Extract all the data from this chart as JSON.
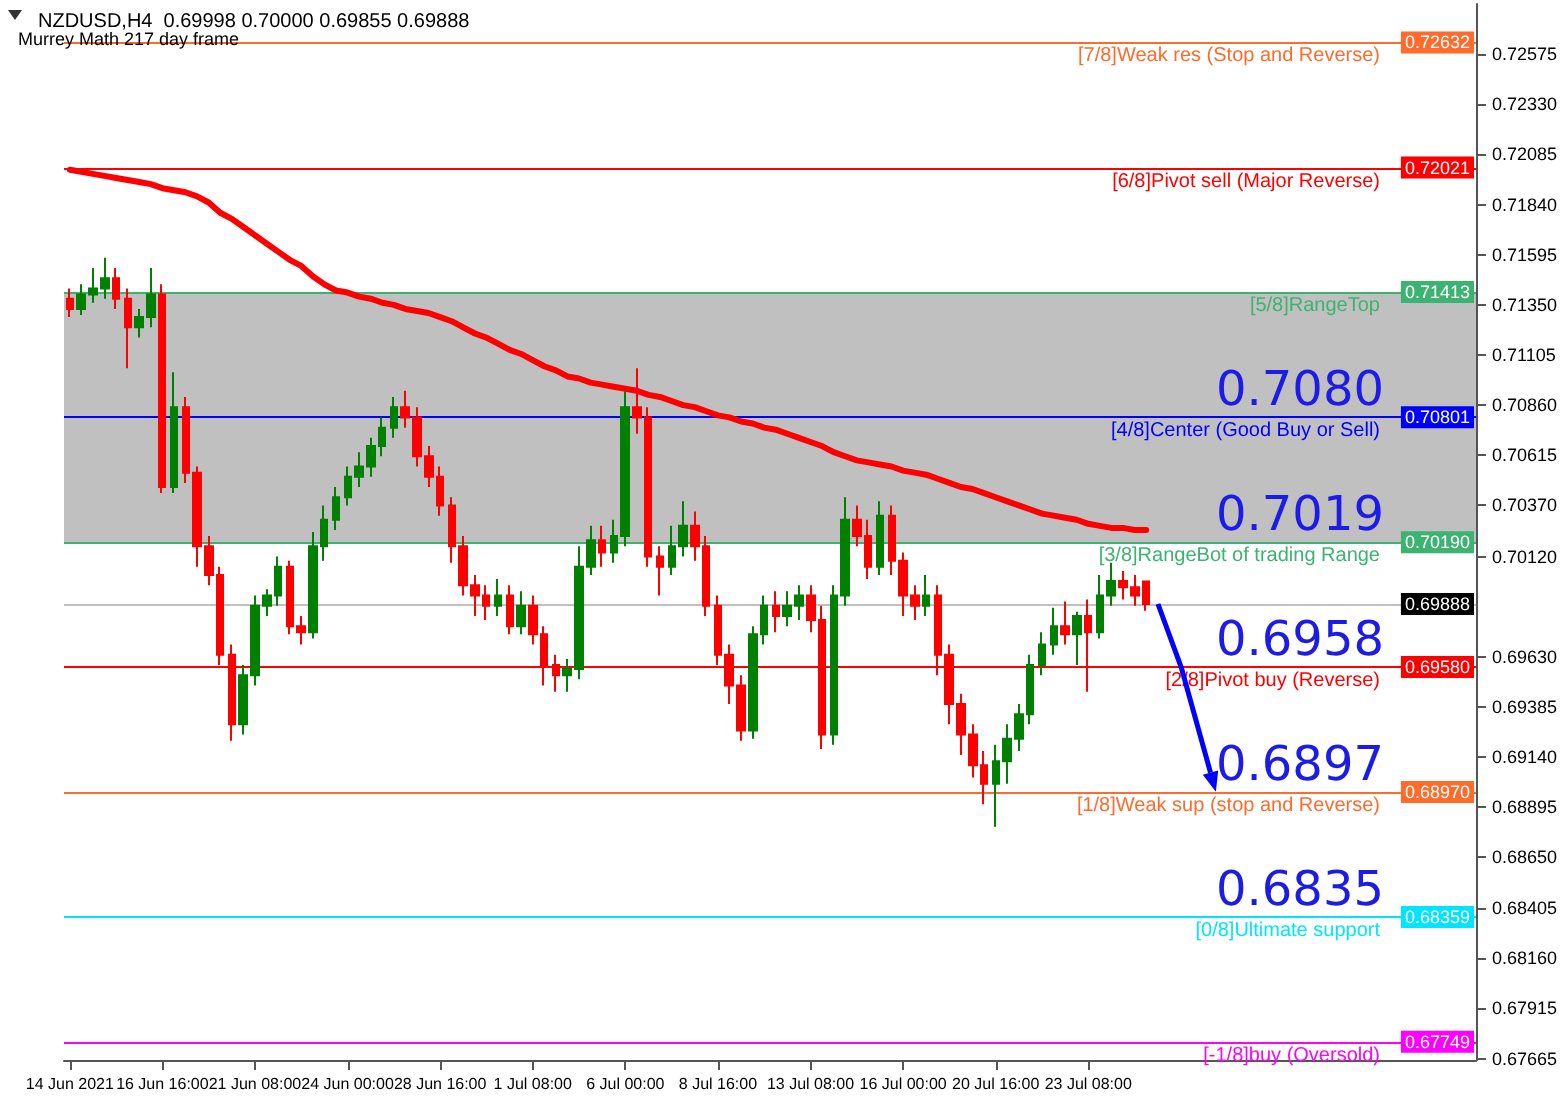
{
  "chart_data": {
    "type": "candlestick",
    "title": "NZDUSD,H4  0.69998 0.70000 0.69855 0.69888",
    "subtitle": "Murrey Math 217 day frame",
    "categories": [
      "14 Jun 2021",
      null,
      null,
      null,
      null,
      null,
      null,
      null,
      "16 Jun 16:00",
      null,
      null,
      null,
      null,
      null,
      null,
      null,
      "21 Jun 08:00",
      null,
      null,
      null,
      null,
      null,
      null,
      null,
      "24 Jun 00:00",
      null,
      null,
      null,
      null,
      null,
      null,
      null,
      "28 Jun 16:00",
      null,
      null,
      null,
      null,
      null,
      null,
      null,
      "1 Jul 08:00",
      null,
      null,
      null,
      null,
      null,
      null,
      null,
      "6 Jul 00:00",
      null,
      null,
      null,
      null,
      null,
      null,
      null,
      "8 Jul 16:00",
      null,
      null,
      null,
      null,
      null,
      null,
      null,
      "13 Jul 08:00",
      null,
      null,
      null,
      null,
      null,
      null,
      null,
      "16 Jul 00:00",
      null,
      null,
      null,
      null,
      null,
      null,
      null,
      "20 Jul 16:00",
      null,
      null,
      null,
      null,
      null,
      null,
      null,
      "23 Jul 08:00",
      null,
      null,
      null,
      null,
      null,
      null,
      null,
      null,
      null,
      null,
      null,
      null,
      null,
      null,
      null,
      null,
      null,
      null,
      null,
      null,
      null,
      null,
      null,
      null,
      null,
      null,
      null,
      null,
      null,
      null,
      null,
      null,
      null
    ],
    "ohlc": [
      [
        0.7138,
        0.7143,
        0.7129,
        0.7133
      ],
      [
        0.7133,
        0.7145,
        0.713,
        0.714
      ],
      [
        0.714,
        0.7153,
        0.7136,
        0.7143
      ],
      [
        0.7143,
        0.7158,
        0.7138,
        0.7148
      ],
      [
        0.7148,
        0.7153,
        0.7133,
        0.7138
      ],
      [
        0.7138,
        0.7143,
        0.7104,
        0.7124
      ],
      [
        0.7124,
        0.7133,
        0.7119,
        0.7129
      ],
      [
        0.7129,
        0.7153,
        0.7124,
        0.714
      ],
      [
        0.714,
        0.7145,
        0.7043,
        0.7046
      ],
      [
        0.7046,
        0.7102,
        0.7043,
        0.7085
      ],
      [
        0.7085,
        0.709,
        0.7048,
        0.7053
      ],
      [
        0.7053,
        0.7056,
        0.7007,
        0.7017
      ],
      [
        0.7017,
        0.7022,
        0.6998,
        0.7003
      ],
      [
        0.7003,
        0.7007,
        0.6959,
        0.6964
      ],
      [
        0.6964,
        0.6969,
        0.6922,
        0.693
      ],
      [
        0.693,
        0.6959,
        0.6925,
        0.6954
      ],
      [
        0.6954,
        0.6993,
        0.6949,
        0.6988
      ],
      [
        0.6988,
        0.6996,
        0.6983,
        0.6993
      ],
      [
        0.6993,
        0.7012,
        0.6988,
        0.7007
      ],
      [
        0.7007,
        0.701,
        0.6974,
        0.6978
      ],
      [
        0.6978,
        0.6983,
        0.6969,
        0.6975
      ],
      [
        0.6975,
        0.7024,
        0.6972,
        0.7017
      ],
      [
        0.7017,
        0.7037,
        0.701,
        0.703
      ],
      [
        0.703,
        0.7046,
        0.7025,
        0.7041
      ],
      [
        0.7041,
        0.7056,
        0.7037,
        0.7051
      ],
      [
        0.7051,
        0.7063,
        0.7046,
        0.7056
      ],
      [
        0.7056,
        0.707,
        0.7051,
        0.7066
      ],
      [
        0.7066,
        0.708,
        0.7061,
        0.7075
      ],
      [
        0.7075,
        0.709,
        0.707,
        0.7085
      ],
      [
        0.7085,
        0.7093,
        0.7075,
        0.708
      ],
      [
        0.708,
        0.7085,
        0.7056,
        0.7061
      ],
      [
        0.7061,
        0.7066,
        0.7046,
        0.7051
      ],
      [
        0.7051,
        0.7056,
        0.7032,
        0.7037
      ],
      [
        0.7037,
        0.7041,
        0.7009,
        0.7017
      ],
      [
        0.7017,
        0.7022,
        0.6993,
        0.6998
      ],
      [
        0.6998,
        0.7003,
        0.6983,
        0.6993
      ],
      [
        0.6993,
        0.6998,
        0.6981,
        0.6988
      ],
      [
        0.6988,
        0.7001,
        0.6983,
        0.6993
      ],
      [
        0.6993,
        0.6998,
        0.6974,
        0.6978
      ],
      [
        0.6978,
        0.6995,
        0.6974,
        0.6988
      ],
      [
        0.6988,
        0.6993,
        0.6969,
        0.6974
      ],
      [
        0.6974,
        0.6978,
        0.6949,
        0.6959
      ],
      [
        0.6959,
        0.6964,
        0.6946,
        0.6954
      ],
      [
        0.6954,
        0.6962,
        0.6946,
        0.6957
      ],
      [
        0.6957,
        0.7017,
        0.6952,
        0.7007
      ],
      [
        0.7007,
        0.7027,
        0.7003,
        0.702
      ],
      [
        0.702,
        0.7027,
        0.7007,
        0.7014
      ],
      [
        0.7014,
        0.703,
        0.7009,
        0.7022
      ],
      [
        0.7022,
        0.7095,
        0.7017,
        0.7085
      ],
      [
        0.7085,
        0.7104,
        0.7072,
        0.708
      ],
      [
        0.708,
        0.7085,
        0.7007,
        0.7012
      ],
      [
        0.7012,
        0.7017,
        0.6993,
        0.7007
      ],
      [
        0.7007,
        0.7027,
        0.7003,
        0.7017
      ],
      [
        0.7017,
        0.7039,
        0.7012,
        0.7027
      ],
      [
        0.7027,
        0.7034,
        0.701,
        0.7017
      ],
      [
        0.7017,
        0.7022,
        0.6983,
        0.6988
      ],
      [
        0.6988,
        0.6993,
        0.6959,
        0.6964
      ],
      [
        0.6964,
        0.6969,
        0.694,
        0.6949
      ],
      [
        0.6949,
        0.6954,
        0.6922,
        0.6927
      ],
      [
        0.6927,
        0.6978,
        0.6923,
        0.6974
      ],
      [
        0.6974,
        0.6993,
        0.6969,
        0.6988
      ],
      [
        0.6988,
        0.6995,
        0.6975,
        0.6983
      ],
      [
        0.6983,
        0.6995,
        0.6978,
        0.6988
      ],
      [
        0.6988,
        0.6998,
        0.6981,
        0.6993
      ],
      [
        0.6993,
        0.6998,
        0.6975,
        0.6981
      ],
      [
        0.6981,
        0.6988,
        0.6918,
        0.6925
      ],
      [
        0.6925,
        0.6998,
        0.692,
        0.6993
      ],
      [
        0.6993,
        0.7041,
        0.6988,
        0.703
      ],
      [
        0.703,
        0.7037,
        0.7017,
        0.7022
      ],
      [
        0.7022,
        0.703,
        0.7001,
        0.7007
      ],
      [
        0.7007,
        0.7039,
        0.7003,
        0.7032
      ],
      [
        0.7032,
        0.7037,
        0.7003,
        0.701
      ],
      [
        0.701,
        0.7014,
        0.6983,
        0.6993
      ],
      [
        0.6993,
        0.6998,
        0.6981,
        0.6988
      ],
      [
        0.6988,
        0.7003,
        0.6983,
        0.6993
      ],
      [
        0.6993,
        0.6998,
        0.6954,
        0.6964
      ],
      [
        0.6964,
        0.6969,
        0.693,
        0.694
      ],
      [
        0.694,
        0.6945,
        0.6915,
        0.6925
      ],
      [
        0.6925,
        0.693,
        0.6904,
        0.691
      ],
      [
        0.691,
        0.6917,
        0.6891,
        0.6901
      ],
      [
        0.6901,
        0.692,
        0.688,
        0.6912
      ],
      [
        0.6912,
        0.693,
        0.6901,
        0.6923
      ],
      [
        0.6923,
        0.694,
        0.6917,
        0.6935
      ],
      [
        0.6935,
        0.6964,
        0.693,
        0.6959
      ],
      [
        0.6959,
        0.6975,
        0.6954,
        0.6969
      ],
      [
        0.6969,
        0.6987,
        0.6964,
        0.6978
      ],
      [
        0.6978,
        0.699,
        0.6969,
        0.6974
      ],
      [
        0.6974,
        0.6985,
        0.6959,
        0.6983
      ],
      [
        0.6983,
        0.6991,
        0.6946,
        0.6975
      ],
      [
        0.6975,
        0.7003,
        0.6972,
        0.6993
      ],
      [
        0.6993,
        0.7009,
        0.6988,
        0.7
      ],
      [
        0.7,
        0.7005,
        0.6991,
        0.6997
      ],
      [
        0.6997,
        0.7003,
        0.6988,
        0.6993
      ],
      [
        0.69998,
        0.7,
        0.69855,
        0.69888
      ],
      null,
      null,
      null,
      null,
      null,
      null,
      null,
      null,
      null,
      null,
      null,
      null,
      null,
      null,
      null,
      null,
      null,
      null,
      null,
      null,
      null,
      null,
      null,
      null,
      null,
      null,
      null,
      null
    ],
    "series": [
      {
        "type": "line",
        "color": "#ff0000",
        "values": [
          0.7201,
          0.72,
          0.7199,
          0.7198,
          0.7197,
          0.7196,
          0.7195,
          0.7194,
          0.7192,
          0.7191,
          0.719,
          0.7188,
          0.7185,
          0.718,
          0.7177,
          0.7173,
          0.7169,
          0.7165,
          0.7161,
          0.7157,
          0.7154,
          0.7149,
          0.7145,
          0.7142,
          0.7141,
          0.7139,
          0.7138,
          0.7136,
          0.7135,
          0.7133,
          0.7132,
          0.7131,
          0.7129,
          0.7127,
          0.7124,
          0.7121,
          0.7119,
          0.7116,
          0.7113,
          0.7111,
          0.7108,
          0.7105,
          0.7103,
          0.71,
          0.7099,
          0.7097,
          0.7096,
          0.7095,
          0.7094,
          0.7093,
          0.7091,
          0.709,
          0.7088,
          0.7086,
          0.7085,
          0.7083,
          0.7081,
          0.708,
          0.7078,
          0.7077,
          0.7075,
          0.7074,
          0.7072,
          0.707,
          0.7068,
          0.7066,
          0.7063,
          0.7061,
          0.7059,
          0.7058,
          0.7057,
          0.7056,
          0.7054,
          0.7053,
          0.7052,
          0.705,
          0.7048,
          0.7046,
          0.7045,
          0.7043,
          0.7041,
          0.7039,
          0.7037,
          0.7035,
          0.7033,
          0.7032,
          0.7031,
          0.703,
          0.7028,
          0.7027,
          0.7026,
          0.7026,
          0.7025,
          0.7025,
          null,
          null,
          null,
          null,
          null,
          null,
          null,
          null,
          null,
          null,
          null,
          null,
          null,
          null,
          null,
          null,
          null,
          null,
          null,
          null,
          null,
          null,
          null,
          null,
          null,
          null,
          null,
          null
        ]
      }
    ],
    "ylim": [
      0.6766,
      0.7282
    ],
    "yticks": [
      {
        "value": 0.72575,
        "label": "0.72575"
      },
      {
        "value": 0.7233,
        "label": "0.72330"
      },
      {
        "value": 0.72085,
        "label": "0.72085"
      },
      {
        "value": 0.7184,
        "label": "0.71840"
      },
      {
        "value": 0.71595,
        "label": "0.71595"
      },
      {
        "value": 0.7135,
        "label": "0.71350"
      },
      {
        "value": 0.71105,
        "label": "0.71105"
      },
      {
        "value": 0.7086,
        "label": "0.70860"
      },
      {
        "value": 0.70615,
        "label": "0.70615"
      },
      {
        "value": 0.7037,
        "label": "0.70370"
      },
      {
        "value": 0.7012,
        "label": "0.70120"
      },
      {
        "value": 0.6963,
        "label": "0.69630"
      },
      {
        "value": 0.69385,
        "label": "0.69385"
      },
      {
        "value": 0.6914,
        "label": "0.69140"
      },
      {
        "value": 0.68895,
        "label": "0.68895"
      },
      {
        "value": 0.6865,
        "label": "0.68650"
      },
      {
        "value": 0.68405,
        "label": "0.68405"
      },
      {
        "value": 0.6816,
        "label": "0.68160"
      },
      {
        "value": 0.67915,
        "label": "0.67915"
      },
      {
        "value": 0.67665,
        "label": "0.67665"
      }
    ],
    "bands": [
      {
        "axis": "y",
        "from": 0.7019,
        "to": 0.71413,
        "color": "#c0c0c0"
      }
    ],
    "ref_lines": [
      {
        "axis": "y",
        "value": 0.72632,
        "label": "[7/8]Weak res (Stop and Reverse)",
        "color": "#ff6b2b"
      },
      {
        "axis": "y",
        "value": 0.72021,
        "label": "[6/8]Pivot sell (Major Reverse)",
        "color": "#ff0000"
      },
      {
        "axis": "y",
        "value": 0.71413,
        "label": "[5/8]RangeTop",
        "color": "#3cb371"
      },
      {
        "axis": "y",
        "value": 0.70801,
        "label": "[4/8]Center (Good Buy or Sell)",
        "color": "#0000ff"
      },
      {
        "axis": "y",
        "value": 0.7019,
        "label": "[3/8]RangeBot of trading Range",
        "color": "#3cb371"
      },
      {
        "axis": "y",
        "value": 0.69888,
        "color": "#c0c0c0"
      },
      {
        "axis": "y",
        "value": 0.6958,
        "label": "[2/8]Pivot buy (Reverse)",
        "color": "#ff0000"
      },
      {
        "axis": "y",
        "value": 0.6897,
        "label": "[1/8]Weak sup (stop and Reverse)",
        "color": "#ff6b2b"
      },
      {
        "axis": "y",
        "value": 0.68359,
        "label": "[0/8]Ultimate support",
        "color": "#00e5ff"
      },
      {
        "axis": "y",
        "value": 0.67749,
        "label": "[-1/8]buy (Oversold)",
        "color": "#ff00ff"
      }
    ],
    "annotations": [
      {
        "text": "0.72632",
        "y": 0.72632
      },
      {
        "text": "0.72021",
        "y": 0.72021
      },
      {
        "text": "0.71413",
        "y": 0.71413
      },
      {
        "text": "0.70801",
        "y": 0.70801
      },
      {
        "text": "0.70190",
        "y": 0.7019
      },
      {
        "text": "0.69888",
        "y": 0.69888
      },
      {
        "text": "0.69580",
        "y": 0.6958
      },
      {
        "text": "0.68970",
        "y": 0.6897
      },
      {
        "text": "0.68359",
        "y": 0.68359
      },
      {
        "text": "0.67749",
        "y": 0.67749
      },
      {
        "text": "0.7080",
        "y": 0.70801
      },
      {
        "text": "0.7019",
        "y": 0.7019
      },
      {
        "text": "0.6958",
        "y": 0.6958
      },
      {
        "text": "0.6897",
        "y": 0.6897
      },
      {
        "text": "0.6835",
        "y": 0.68359
      }
    ]
  }
}
